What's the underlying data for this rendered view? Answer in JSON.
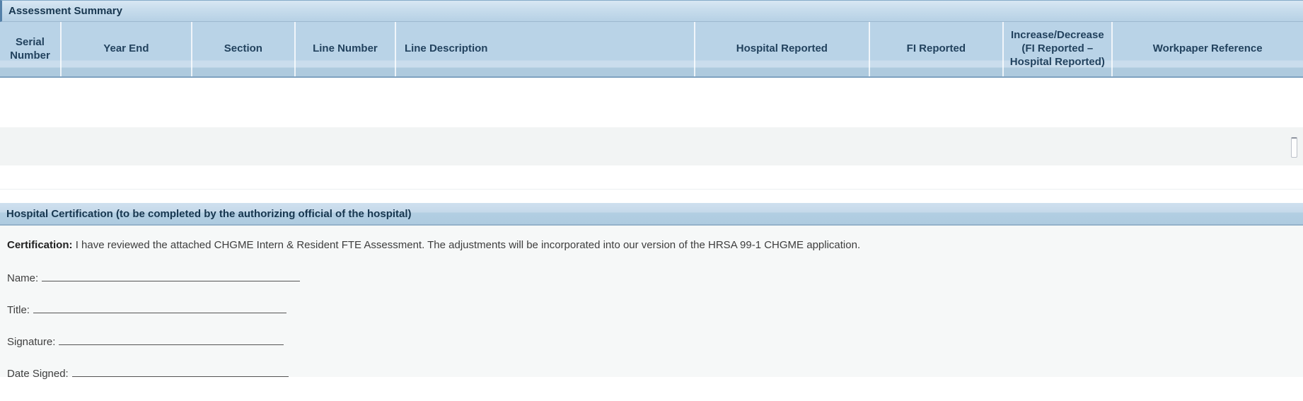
{
  "assessment_summary": {
    "title": "Assessment Summary",
    "columns": [
      "Serial Number",
      "Year End",
      "Section",
      "Line Number",
      "Line Description",
      "Hospital Reported",
      "FI Reported",
      "Increase/Decrease (FI Reported – Hospital Reported)",
      "Workpaper Reference"
    ],
    "rows": [
      [
        "",
        "",
        "",
        "",
        "",
        "",
        "",
        "",
        ""
      ],
      [
        "",
        "",
        "",
        "",
        "",
        "",
        "",
        "",
        ""
      ],
      [
        "",
        "",
        "",
        "",
        "",
        "",
        "",
        "",
        ""
      ]
    ]
  },
  "certification": {
    "title": "Hospital Certification (to be completed by the authorizing official of the hospital)",
    "statement_label": "Certification:",
    "statement_text": "I have reviewed the attached CHGME Intern & Resident FTE Assessment. The adjustments will be incorporated into our version of the HRSA 99-1 CHGME application.",
    "fields": {
      "name_label": "Name:",
      "title_label": "Title:",
      "signature_label": "Signature:",
      "date_signed_label": "Date Signed:"
    }
  },
  "colors": {
    "titlebar_blue_top": "#d8e7f3",
    "titlebar_blue_bottom": "#b7d1e5",
    "header_blue": "#b9d3e7",
    "header_border": "#7fa2c0",
    "row_alt_gray": "#f2f4f4",
    "section_bg": "#f6f8f8",
    "heading_text": "#17364f",
    "body_text": "#3d3d3d"
  }
}
